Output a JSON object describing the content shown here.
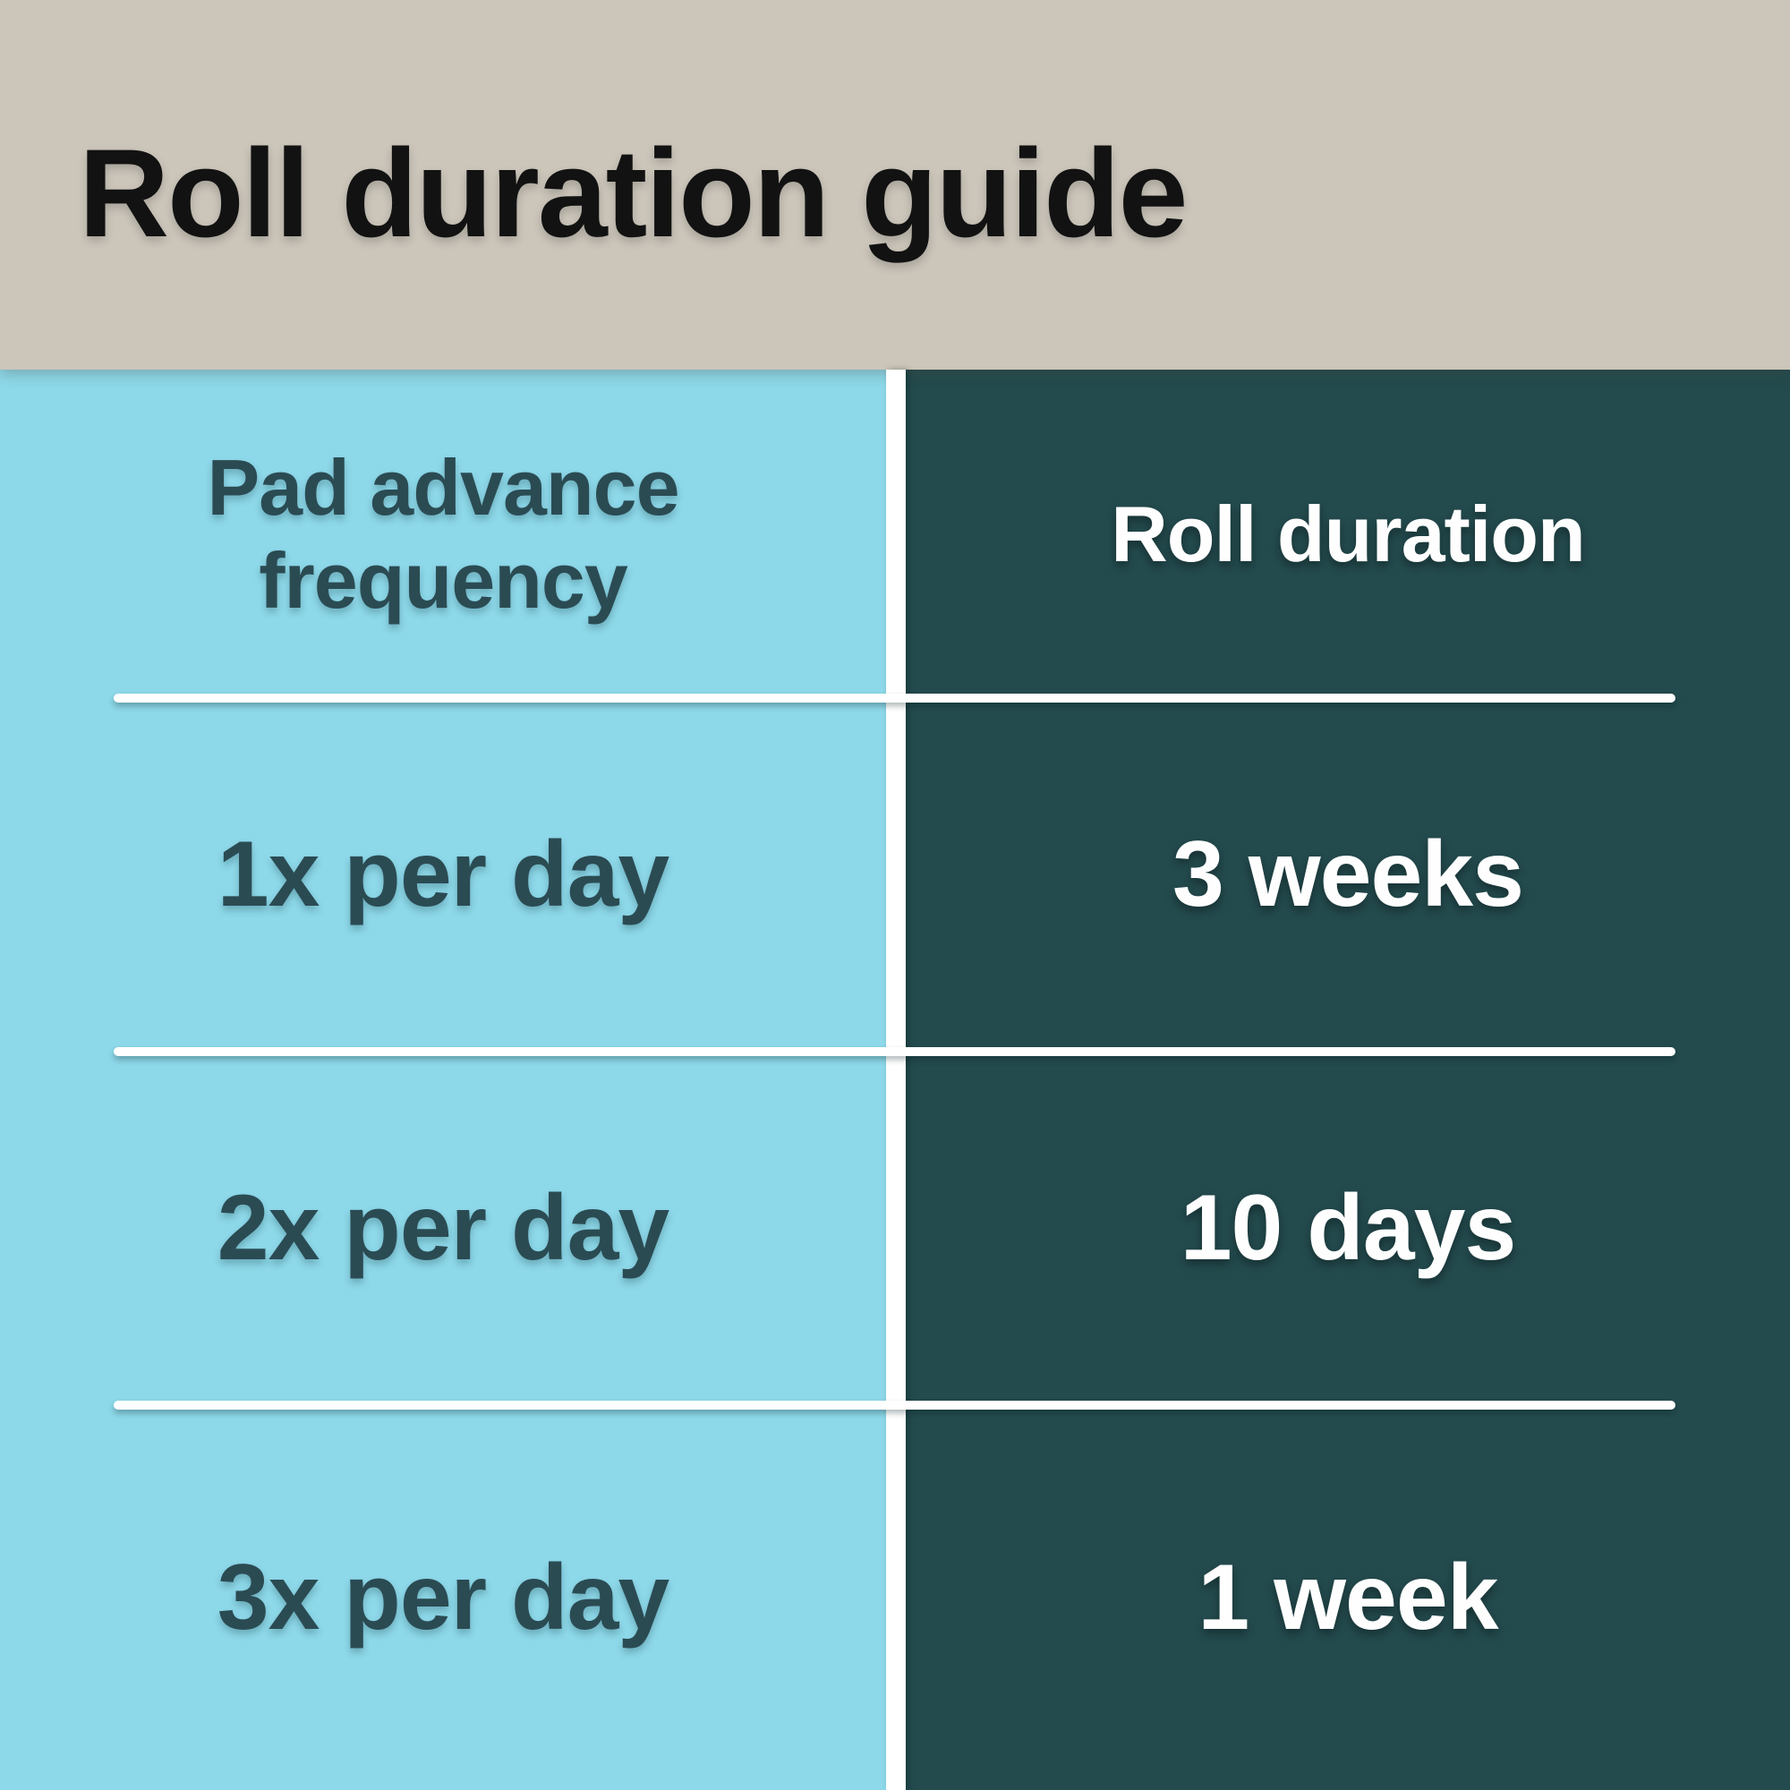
{
  "title": "Roll duration guide",
  "table": {
    "columns": [
      {
        "label": "Pad advance frequency"
      },
      {
        "label": "Roll duration"
      }
    ],
    "rows": [
      {
        "frequency": "1x per day",
        "duration": "3 weeks"
      },
      {
        "frequency": "2x per day",
        "duration": "10 days"
      },
      {
        "frequency": "3x per day",
        "duration": "1 week"
      }
    ]
  },
  "chart_data": {
    "type": "table",
    "title": "Roll duration guide",
    "columns": [
      "Pad advance frequency",
      "Roll duration"
    ],
    "rows": [
      [
        "1x per day",
        "3 weeks"
      ],
      [
        "2x per day",
        "10 days"
      ],
      [
        "3x per day",
        "1 week"
      ]
    ]
  },
  "colors": {
    "title_band_bg": "#cbc5ba",
    "title_text": "#121212",
    "left_column_bg": "#8dd8e9",
    "left_column_text": "#2b4b53",
    "right_column_bg": "#234a4d",
    "right_column_text": "#fefefe",
    "divider": "#ffffff"
  }
}
